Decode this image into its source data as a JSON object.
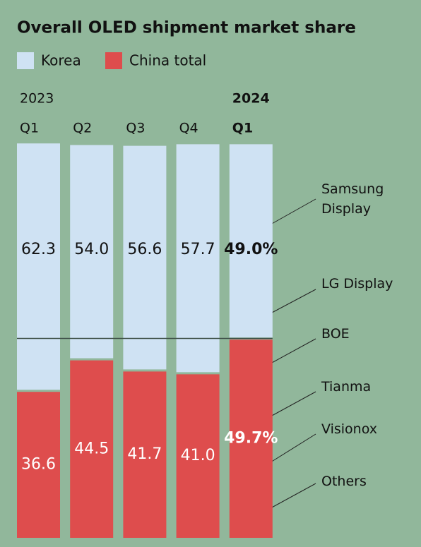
{
  "chart_data": {
    "type": "stacked_bar",
    "title": "Overall OLED shipment market share",
    "categories": [
      "Q1",
      "Q2",
      "Q3",
      "Q4",
      "Q1"
    ],
    "years": [
      "2023",
      null,
      null,
      null,
      "2024"
    ],
    "series": [
      {
        "name": "China total",
        "color": "#de4d4d",
        "values": [
          36.6,
          44.5,
          41.7,
          41.0,
          49.7
        ],
        "value_labels": [
          "36.6",
          "44.5",
          "41.7",
          "41.0",
          "49.7%"
        ]
      },
      {
        "name": "Korea",
        "color": "#cfe2f3",
        "values": [
          62.3,
          54.0,
          56.6,
          57.7,
          49.0
        ],
        "value_labels": [
          "62.3",
          "54.0",
          "56.6",
          "57.7",
          "49.0%"
        ]
      }
    ],
    "ylim": [
      0,
      100
    ],
    "reference_line": 50,
    "annotations": [
      "Samsung\nDisplay",
      "LG Display",
      "BOE",
      "Tianma",
      "Visionox",
      "Others"
    ]
  }
}
